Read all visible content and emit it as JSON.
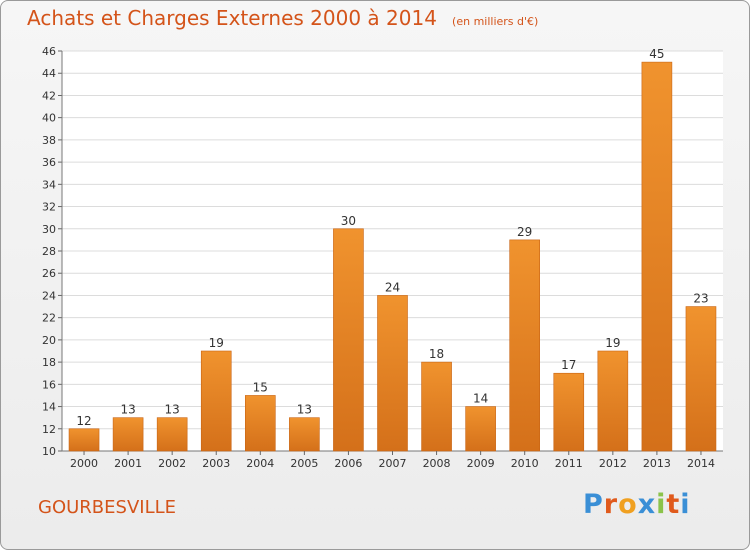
{
  "header": {
    "title": "Achats et Charges Externes 2000 à 2014",
    "subtitle": "(en milliers d'€)"
  },
  "footer": {
    "place": "GOURBESVILLE",
    "brand": "Proxiti",
    "brand_letters": [
      "P",
      "r",
      "o",
      "x",
      "i",
      "t",
      "i"
    ],
    "brand_colors": [
      "#3a8fd6",
      "#e05a1c",
      "#f0a020",
      "#3a8fd6",
      "#8bc34a",
      "#e05a1c",
      "#3a8fd6"
    ]
  },
  "colors": {
    "bar": "#f0932e",
    "bar_dark": "#d4701a",
    "title": "#d4541a"
  },
  "chart_data": {
    "type": "bar",
    "categories": [
      "2000",
      "2001",
      "2002",
      "2003",
      "2004",
      "2005",
      "2006",
      "2007",
      "2008",
      "2009",
      "2010",
      "2011",
      "2012",
      "2013",
      "2014"
    ],
    "values": [
      12,
      13,
      13,
      19,
      15,
      13,
      30,
      24,
      18,
      14,
      29,
      17,
      19,
      45,
      23
    ],
    "ylim": [
      10,
      46
    ],
    "yticks": [
      10,
      12,
      14,
      16,
      18,
      20,
      22,
      24,
      26,
      28,
      30,
      32,
      34,
      36,
      38,
      40,
      42,
      44,
      46
    ],
    "grid": true,
    "title": "Achats et Charges Externes 2000 à 2014",
    "xlabel": "",
    "ylabel": ""
  }
}
